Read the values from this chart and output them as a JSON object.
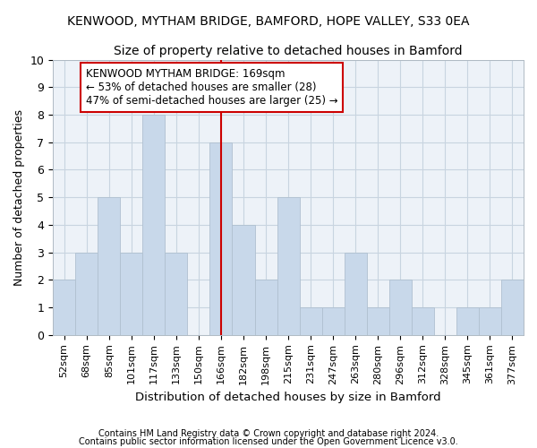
{
  "title": "KENWOOD, MYTHAM BRIDGE, BAMFORD, HOPE VALLEY, S33 0EA",
  "subtitle": "Size of property relative to detached houses in Bamford",
  "xlabel": "Distribution of detached houses by size in Bamford",
  "ylabel": "Number of detached properties",
  "footnote1": "Contains HM Land Registry data © Crown copyright and database right 2024.",
  "footnote2": "Contains public sector information licensed under the Open Government Licence v3.0.",
  "categories": [
    "52sqm",
    "68sqm",
    "85sqm",
    "101sqm",
    "117sqm",
    "133sqm",
    "150sqm",
    "166sqm",
    "182sqm",
    "198sqm",
    "215sqm",
    "231sqm",
    "247sqm",
    "263sqm",
    "280sqm",
    "296sqm",
    "312sqm",
    "328sqm",
    "345sqm",
    "361sqm",
    "377sqm"
  ],
  "values": [
    2,
    3,
    5,
    3,
    8,
    3,
    0,
    7,
    4,
    2,
    5,
    1,
    1,
    3,
    1,
    2,
    1,
    0,
    1,
    1,
    2
  ],
  "bar_color": "#c8d8ea",
  "bar_edgecolor": "#b0c0d0",
  "grid_color": "#c8d4e0",
  "background_color": "#ffffff",
  "plot_bg_color": "#edf2f8",
  "marker_color": "#cc0000",
  "marker_bar_index": 7,
  "annotation_line1": "KENWOOD MYTHAM BRIDGE: 169sqm",
  "annotation_line2": "← 53% of detached houses are smaller (28)",
  "annotation_line3": "47% of semi-detached houses are larger (25) →",
  "annotation_box_color": "#ffffff",
  "annotation_box_edgecolor": "#cc0000",
  "ylim": [
    0,
    10
  ],
  "yticks": [
    0,
    1,
    2,
    3,
    4,
    5,
    6,
    7,
    8,
    9,
    10
  ]
}
